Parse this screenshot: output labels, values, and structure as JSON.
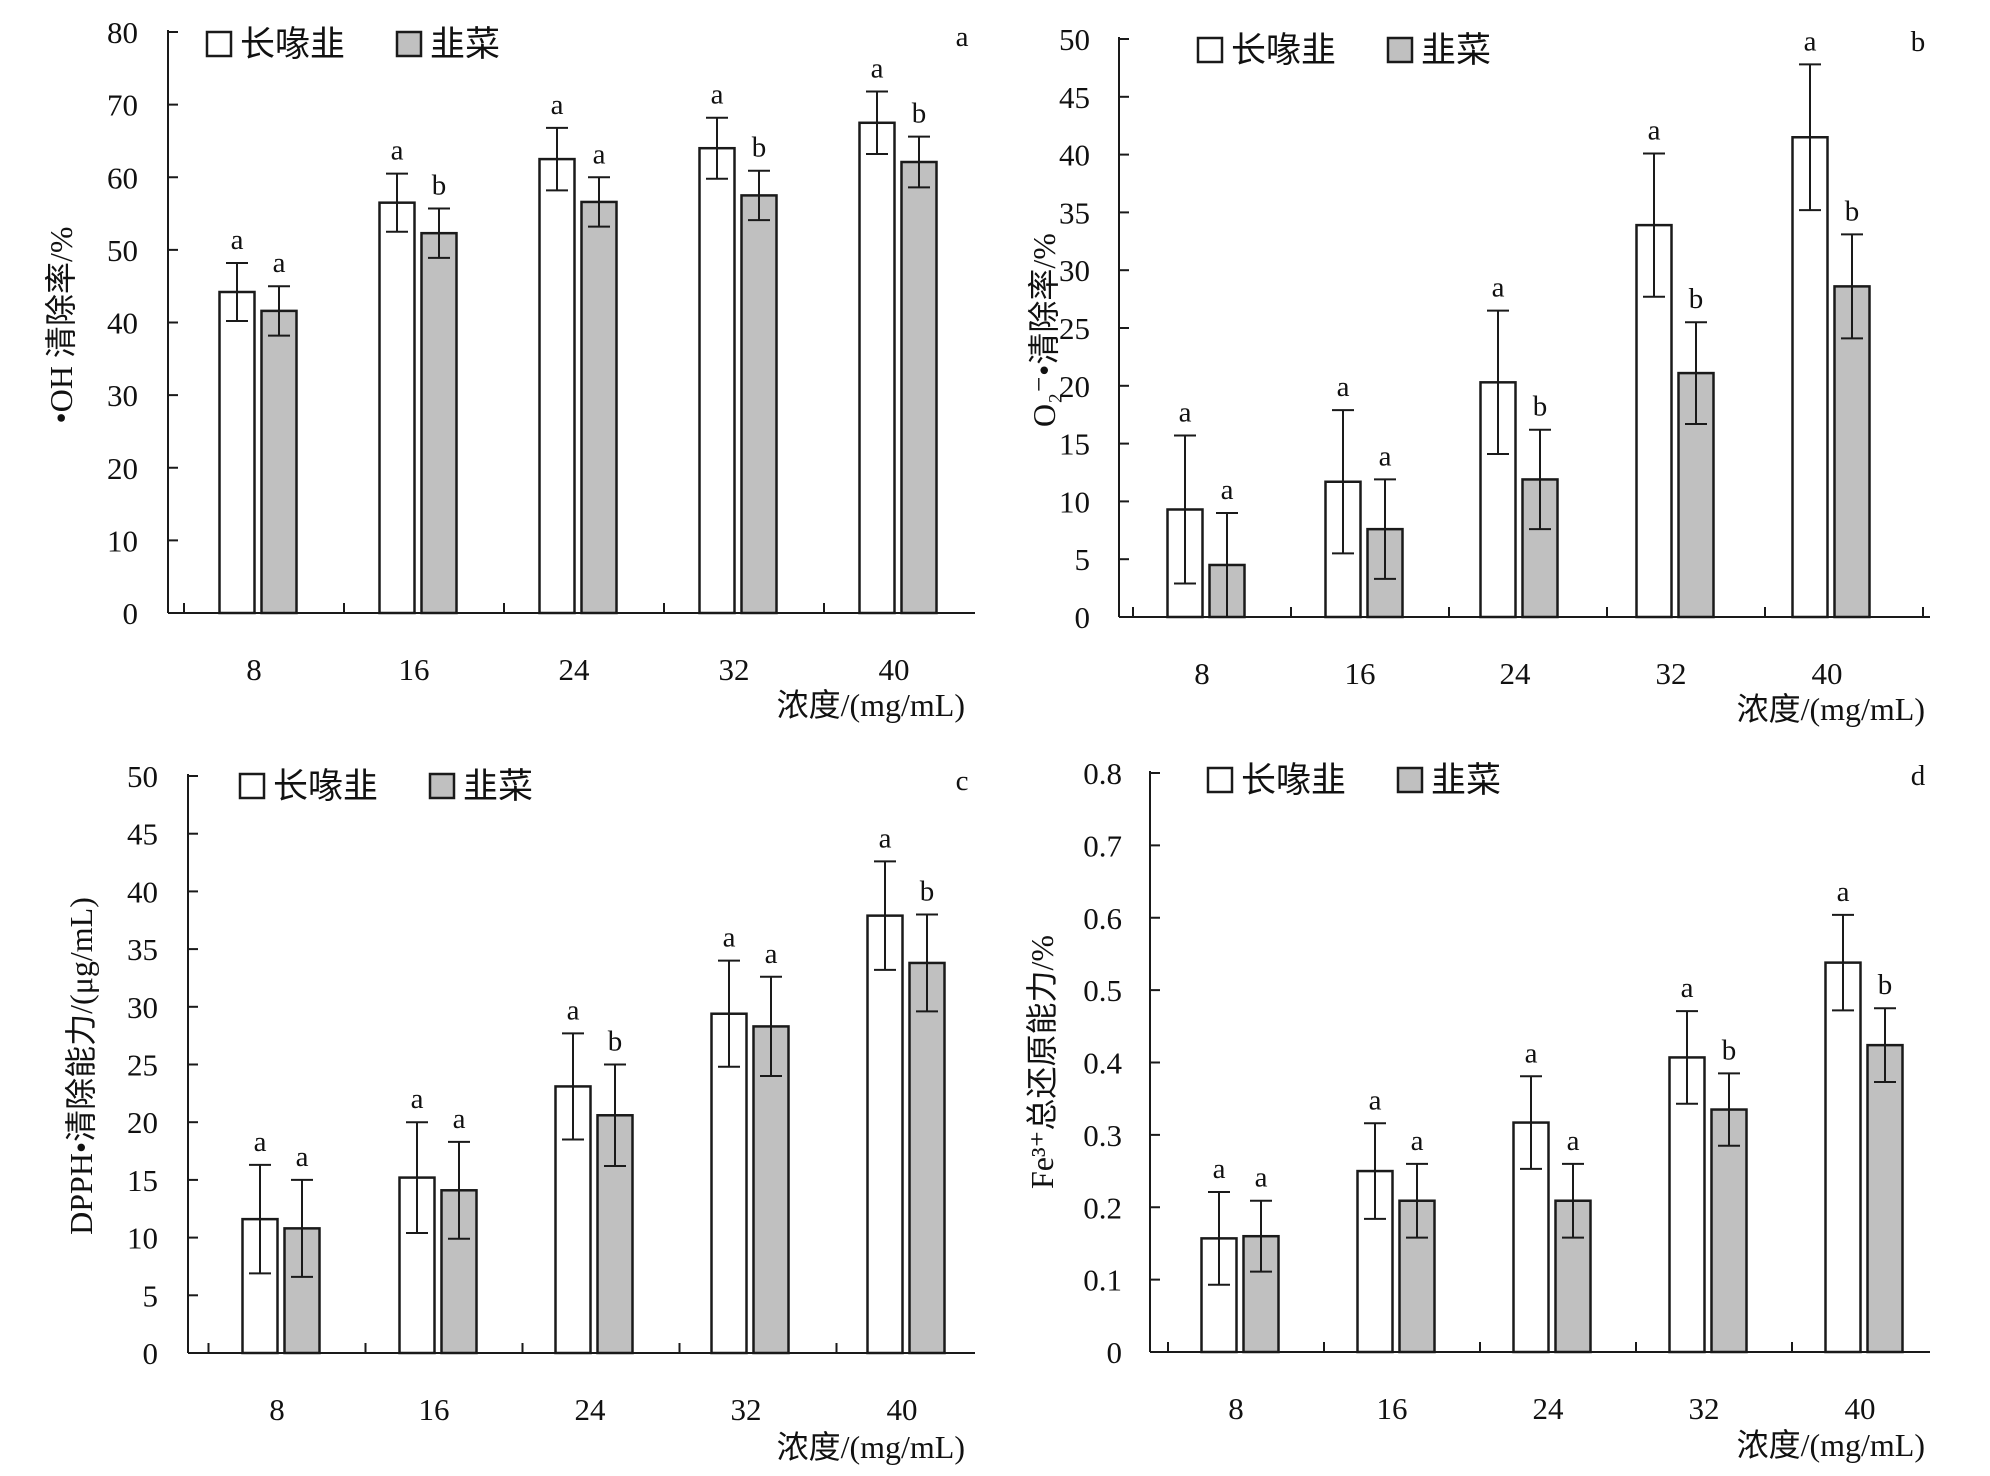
{
  "colors": {
    "series_long": "#ffffff",
    "series_chive": "#c0c0c0",
    "stroke": "#1a1a1a"
  },
  "chart_data": [
    {
      "panel": "a",
      "type": "bar",
      "categories": [
        "8",
        "16",
        "24",
        "32",
        "40"
      ],
      "xlabel": "浓度/(mg/mL)",
      "ylabel": "•OH 清除率/%",
      "ylim": [
        0,
        80
      ],
      "yticks": [
        "0",
        "10",
        "20",
        "30",
        "40",
        "50",
        "60",
        "70",
        "80"
      ],
      "legend_position": "top-left",
      "series": [
        {
          "name": "长喙韭",
          "values": [
            44.2,
            56.5,
            62.5,
            64.0,
            67.5
          ],
          "errors": [
            4.0,
            4.0,
            4.3,
            4.2,
            4.3
          ],
          "letters": [
            "a",
            "a",
            "a",
            "a",
            "a"
          ]
        },
        {
          "name": "韭菜",
          "values": [
            41.6,
            52.3,
            56.6,
            57.5,
            62.1
          ],
          "errors": [
            3.4,
            3.4,
            3.4,
            3.4,
            3.5
          ],
          "letters": [
            "a",
            "b",
            "a",
            "b",
            "b"
          ]
        }
      ]
    },
    {
      "panel": "b",
      "type": "bar",
      "categories": [
        "8",
        "16",
        "24",
        "32",
        "40"
      ],
      "xlabel": "浓度/(mg/mL)",
      "ylabel": "O₂⁻•清除率/%",
      "ylim": [
        0,
        50
      ],
      "yticks": [
        "0",
        "5",
        "10",
        "15",
        "20",
        "25",
        "30",
        "35",
        "40",
        "45",
        "50"
      ],
      "legend_position": "top-left",
      "series": [
        {
          "name": "长喙韭",
          "values": [
            9.3,
            11.7,
            20.3,
            33.9,
            41.5
          ],
          "errors": [
            6.4,
            6.2,
            6.2,
            6.2,
            6.3
          ],
          "letters": [
            "a",
            "a",
            "a",
            "a",
            "a"
          ]
        },
        {
          "name": "韭菜",
          "values": [
            4.5,
            7.6,
            11.9,
            21.1,
            28.6
          ],
          "errors": [
            4.5,
            4.3,
            4.3,
            4.4,
            4.5
          ],
          "letters": [
            "a",
            "a",
            "b",
            "b",
            "b"
          ]
        }
      ]
    },
    {
      "panel": "c",
      "type": "bar",
      "categories": [
        "8",
        "16",
        "24",
        "32",
        "40"
      ],
      "xlabel": "浓度/(mg/mL)",
      "ylabel": "DPPH•清除能力/(μg/mL)",
      "ylim": [
        0,
        50
      ],
      "yticks": [
        "0",
        "5",
        "10",
        "15",
        "20",
        "25",
        "30",
        "35",
        "40",
        "45",
        "50"
      ],
      "legend_position": "top-left",
      "series": [
        {
          "name": "长喙韭",
          "values": [
            11.6,
            15.2,
            23.1,
            29.4,
            37.9
          ],
          "errors": [
            4.7,
            4.8,
            4.6,
            4.6,
            4.7
          ],
          "letters": [
            "a",
            "a",
            "a",
            "a",
            "a"
          ]
        },
        {
          "name": "韭菜",
          "values": [
            10.8,
            14.1,
            20.6,
            28.3,
            33.8
          ],
          "errors": [
            4.2,
            4.2,
            4.4,
            4.3,
            4.2
          ],
          "letters": [
            "a",
            "a",
            "b",
            "a",
            "b"
          ]
        }
      ]
    },
    {
      "panel": "d",
      "type": "bar",
      "categories": [
        "8",
        "16",
        "24",
        "32",
        "40"
      ],
      "xlabel": "浓度/(mg/mL)",
      "ylabel": "Fe³⁺总还原能力/%",
      "ylim": [
        0,
        0.8
      ],
      "yticks": [
        "0",
        "0.1",
        "0.2",
        "0.3",
        "0.4",
        "0.5",
        "0.6",
        "0.7",
        "0.8"
      ],
      "legend_position": "top-left",
      "series": [
        {
          "name": "长喙韭",
          "values": [
            0.157,
            0.25,
            0.317,
            0.407,
            0.538
          ],
          "errors": [
            0.064,
            0.066,
            0.064,
            0.064,
            0.066
          ],
          "letters": [
            "a",
            "a",
            "a",
            "a",
            "a"
          ]
        },
        {
          "name": "韭菜",
          "values": [
            0.16,
            0.209,
            0.209,
            0.335,
            0.424
          ],
          "errors": [
            0.049,
            0.051,
            0.051,
            0.05,
            0.051
          ],
          "letters": [
            "a",
            "a",
            "a",
            "b",
            "b"
          ]
        }
      ]
    }
  ]
}
